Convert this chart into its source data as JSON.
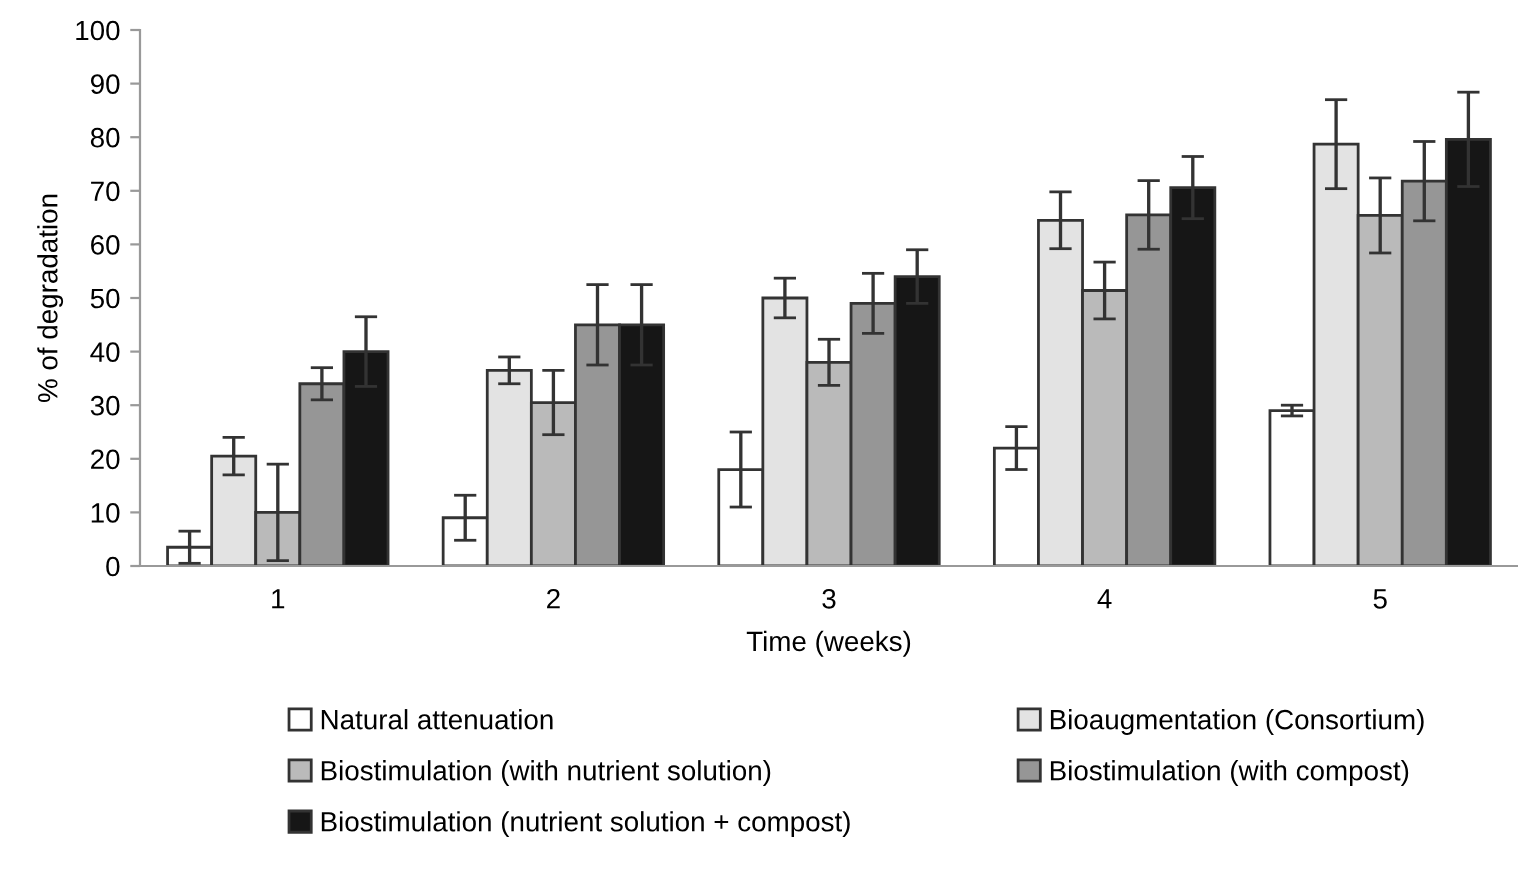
{
  "chart_data": {
    "type": "bar",
    "xlabel": "Time (weeks)",
    "ylabel": "% of degradation",
    "categories": [
      "1",
      "2",
      "3",
      "4",
      "5"
    ],
    "ylim": [
      0,
      100
    ],
    "yticks": [
      0,
      10,
      20,
      30,
      40,
      50,
      60,
      70,
      80,
      90,
      100
    ],
    "grid": false,
    "legend": "bottom",
    "series": [
      {
        "name": "Natural attenuation",
        "color": "#ffffff",
        "values": [
          3.5,
          9,
          18,
          22,
          29
        ],
        "errors": [
          3,
          4.2,
          7,
          4,
          1
        ]
      },
      {
        "name": "Bioaugmentation (Consortium)",
        "color": "#e3e3e3",
        "values": [
          20.5,
          36.5,
          50,
          64.5,
          78.7
        ],
        "errors": [
          3.5,
          2.5,
          3.7,
          5.3,
          8.3
        ]
      },
      {
        "name": "Biostimulation (with nutrient solution)",
        "color": "#bababa",
        "values": [
          10,
          30.5,
          38,
          51.4,
          65.4
        ],
        "errors": [
          9,
          6,
          4.3,
          5.3,
          7
        ]
      },
      {
        "name": "Biostimulation (with compost)",
        "color": "#969696",
        "values": [
          34,
          45,
          49,
          65.5,
          71.8
        ],
        "errors": [
          3,
          7.5,
          5.6,
          6.4,
          7.4
        ]
      },
      {
        "name": "Biostimulation (nutrient solution + compost)",
        "color": "#161616",
        "values": [
          40,
          45,
          54,
          70.6,
          79.6
        ],
        "errors": [
          6.5,
          7.5,
          5,
          5.8,
          8.8
        ]
      }
    ]
  }
}
